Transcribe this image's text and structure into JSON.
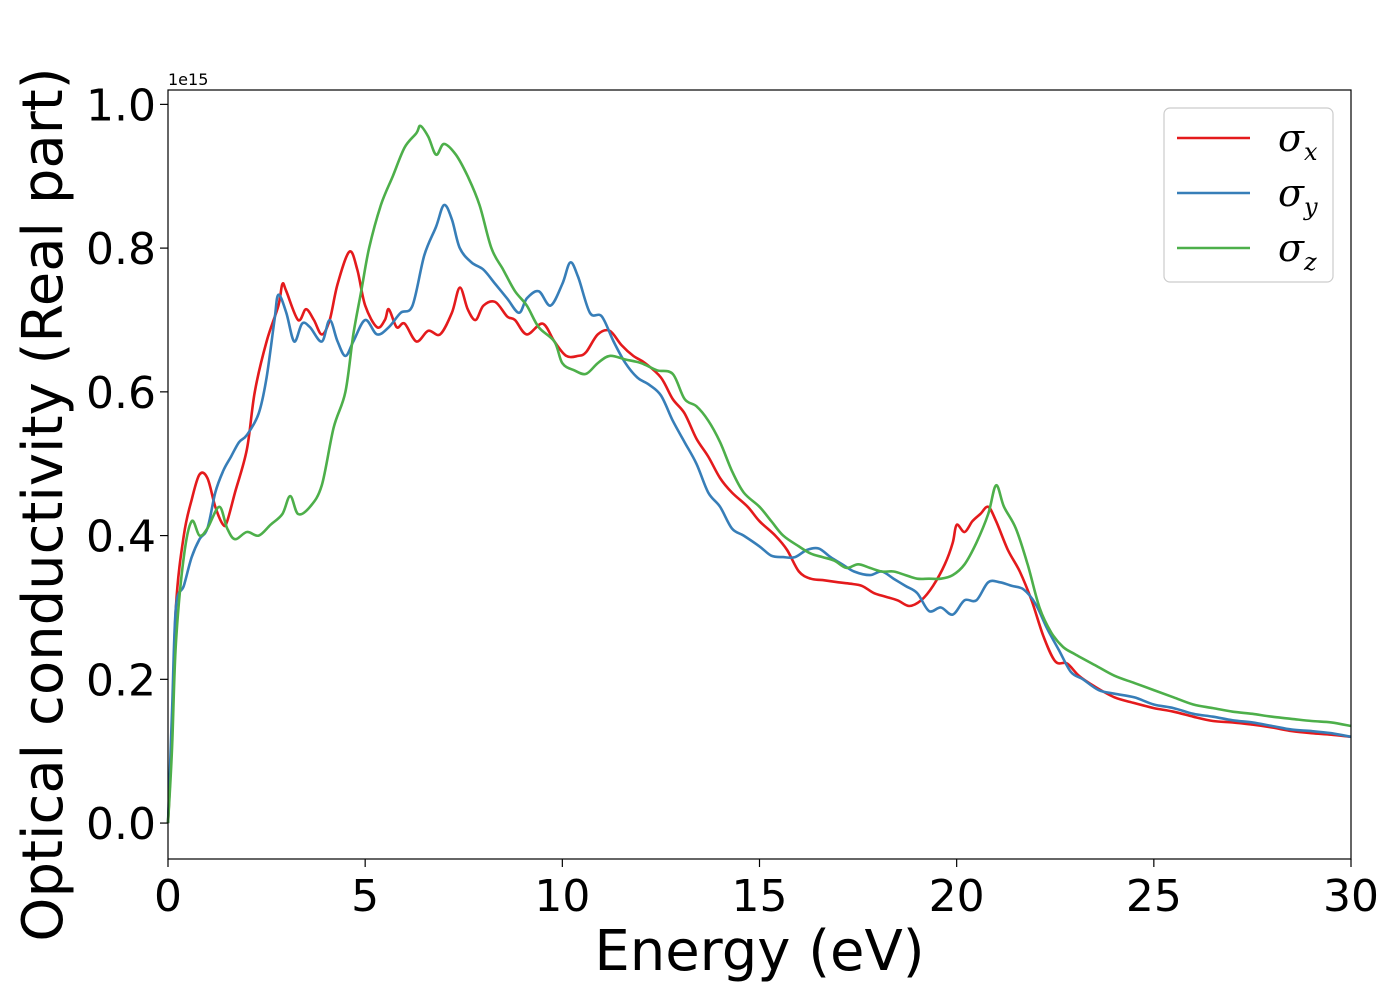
{
  "chart_data": {
    "type": "line",
    "xlabel": "Energy (eV)",
    "ylabel": "Optical conductivity (Real part)",
    "y_offset_label": "1e15",
    "xlim": [
      0,
      30
    ],
    "ylim": [
      -0.05,
      1.02
    ],
    "xticks": [
      0,
      5,
      10,
      15,
      20,
      25,
      30
    ],
    "yticks": [
      0.0,
      0.2,
      0.4,
      0.6,
      0.8,
      1.0
    ],
    "xtick_labels": [
      "0",
      "5",
      "10",
      "15",
      "20",
      "25",
      "30"
    ],
    "ytick_labels": [
      "0.0",
      "0.2",
      "0.4",
      "0.6",
      "0.8",
      "1.0"
    ],
    "legend_position": "top-right",
    "grid": false,
    "series": [
      {
        "name": "σx",
        "symbol": "σ",
        "subscript": "x",
        "color": "#e41a1c",
        "points": [
          [
            0,
            0.0
          ],
          [
            0.1,
            0.12
          ],
          [
            0.2,
            0.3
          ],
          [
            0.4,
            0.4
          ],
          [
            0.6,
            0.45
          ],
          [
            0.8,
            0.485
          ],
          [
            1.0,
            0.48
          ],
          [
            1.2,
            0.44
          ],
          [
            1.4,
            0.415
          ],
          [
            1.5,
            0.42
          ],
          [
            1.7,
            0.46
          ],
          [
            2.0,
            0.52
          ],
          [
            2.2,
            0.6
          ],
          [
            2.5,
            0.67
          ],
          [
            2.8,
            0.72
          ],
          [
            2.9,
            0.75
          ],
          [
            3.0,
            0.74
          ],
          [
            3.3,
            0.7
          ],
          [
            3.5,
            0.715
          ],
          [
            3.7,
            0.7
          ],
          [
            3.9,
            0.68
          ],
          [
            4.1,
            0.7
          ],
          [
            4.3,
            0.75
          ],
          [
            4.6,
            0.795
          ],
          [
            4.8,
            0.77
          ],
          [
            5.0,
            0.72
          ],
          [
            5.3,
            0.69
          ],
          [
            5.5,
            0.7
          ],
          [
            5.6,
            0.715
          ],
          [
            5.8,
            0.69
          ],
          [
            6.0,
            0.695
          ],
          [
            6.3,
            0.67
          ],
          [
            6.6,
            0.685
          ],
          [
            6.9,
            0.68
          ],
          [
            7.2,
            0.71
          ],
          [
            7.4,
            0.745
          ],
          [
            7.6,
            0.715
          ],
          [
            7.8,
            0.7
          ],
          [
            8.0,
            0.72
          ],
          [
            8.3,
            0.725
          ],
          [
            8.6,
            0.705
          ],
          [
            8.8,
            0.7
          ],
          [
            9.1,
            0.68
          ],
          [
            9.5,
            0.695
          ],
          [
            9.8,
            0.67
          ],
          [
            10.1,
            0.65
          ],
          [
            10.4,
            0.65
          ],
          [
            10.6,
            0.655
          ],
          [
            10.9,
            0.68
          ],
          [
            11.2,
            0.685
          ],
          [
            11.5,
            0.665
          ],
          [
            11.8,
            0.65
          ],
          [
            12.1,
            0.64
          ],
          [
            12.5,
            0.62
          ],
          [
            12.8,
            0.59
          ],
          [
            13.1,
            0.57
          ],
          [
            13.4,
            0.535
          ],
          [
            13.7,
            0.51
          ],
          [
            14.0,
            0.48
          ],
          [
            14.3,
            0.46
          ],
          [
            14.7,
            0.44
          ],
          [
            15.0,
            0.42
          ],
          [
            15.4,
            0.4
          ],
          [
            15.7,
            0.38
          ],
          [
            16.0,
            0.35
          ],
          [
            16.3,
            0.34
          ],
          [
            16.6,
            0.338
          ],
          [
            17.0,
            0.335
          ],
          [
            17.3,
            0.333
          ],
          [
            17.6,
            0.33
          ],
          [
            17.9,
            0.32
          ],
          [
            18.2,
            0.315
          ],
          [
            18.5,
            0.31
          ],
          [
            18.8,
            0.302
          ],
          [
            19.1,
            0.31
          ],
          [
            19.4,
            0.33
          ],
          [
            19.7,
            0.36
          ],
          [
            19.9,
            0.39
          ],
          [
            20.0,
            0.415
          ],
          [
            20.2,
            0.405
          ],
          [
            20.4,
            0.42
          ],
          [
            20.6,
            0.43
          ],
          [
            20.8,
            0.44
          ],
          [
            21.0,
            0.42
          ],
          [
            21.3,
            0.38
          ],
          [
            21.6,
            0.35
          ],
          [
            21.9,
            0.31
          ],
          [
            22.2,
            0.26
          ],
          [
            22.5,
            0.225
          ],
          [
            22.8,
            0.222
          ],
          [
            23.1,
            0.205
          ],
          [
            23.5,
            0.19
          ],
          [
            24.0,
            0.175
          ],
          [
            24.5,
            0.167
          ],
          [
            25.0,
            0.16
          ],
          [
            25.5,
            0.155
          ],
          [
            26.0,
            0.148
          ],
          [
            26.5,
            0.142
          ],
          [
            27.0,
            0.14
          ],
          [
            27.5,
            0.137
          ],
          [
            28.0,
            0.133
          ],
          [
            28.5,
            0.128
          ],
          [
            29.0,
            0.125
          ],
          [
            29.5,
            0.123
          ],
          [
            30.0,
            0.12
          ]
        ]
      },
      {
        "name": "σy",
        "symbol": "σ",
        "subscript": "y",
        "color": "#377eb8",
        "points": [
          [
            0,
            0.0
          ],
          [
            0.1,
            0.15
          ],
          [
            0.2,
            0.3
          ],
          [
            0.4,
            0.33
          ],
          [
            0.6,
            0.37
          ],
          [
            0.8,
            0.395
          ],
          [
            1.0,
            0.41
          ],
          [
            1.2,
            0.46
          ],
          [
            1.4,
            0.49
          ],
          [
            1.6,
            0.51
          ],
          [
            1.8,
            0.53
          ],
          [
            2.0,
            0.54
          ],
          [
            2.3,
            0.57
          ],
          [
            2.5,
            0.62
          ],
          [
            2.7,
            0.7
          ],
          [
            2.8,
            0.735
          ],
          [
            3.0,
            0.71
          ],
          [
            3.2,
            0.67
          ],
          [
            3.4,
            0.695
          ],
          [
            3.6,
            0.69
          ],
          [
            3.9,
            0.67
          ],
          [
            4.1,
            0.7
          ],
          [
            4.3,
            0.67
          ],
          [
            4.5,
            0.65
          ],
          [
            4.7,
            0.67
          ],
          [
            5.0,
            0.7
          ],
          [
            5.3,
            0.68
          ],
          [
            5.6,
            0.69
          ],
          [
            5.9,
            0.71
          ],
          [
            6.2,
            0.72
          ],
          [
            6.5,
            0.79
          ],
          [
            6.8,
            0.83
          ],
          [
            7.0,
            0.86
          ],
          [
            7.2,
            0.84
          ],
          [
            7.4,
            0.8
          ],
          [
            7.7,
            0.78
          ],
          [
            8.0,
            0.77
          ],
          [
            8.3,
            0.75
          ],
          [
            8.6,
            0.73
          ],
          [
            8.9,
            0.71
          ],
          [
            9.1,
            0.73
          ],
          [
            9.4,
            0.74
          ],
          [
            9.7,
            0.72
          ],
          [
            10.0,
            0.75
          ],
          [
            10.2,
            0.78
          ],
          [
            10.4,
            0.76
          ],
          [
            10.7,
            0.71
          ],
          [
            11.0,
            0.705
          ],
          [
            11.3,
            0.67
          ],
          [
            11.6,
            0.64
          ],
          [
            11.9,
            0.62
          ],
          [
            12.2,
            0.61
          ],
          [
            12.5,
            0.595
          ],
          [
            12.8,
            0.56
          ],
          [
            13.1,
            0.53
          ],
          [
            13.4,
            0.5
          ],
          [
            13.7,
            0.46
          ],
          [
            14.0,
            0.44
          ],
          [
            14.3,
            0.41
          ],
          [
            14.6,
            0.4
          ],
          [
            15.0,
            0.385
          ],
          [
            15.3,
            0.372
          ],
          [
            15.6,
            0.37
          ],
          [
            15.9,
            0.37
          ],
          [
            16.2,
            0.38
          ],
          [
            16.5,
            0.382
          ],
          [
            16.8,
            0.37
          ],
          [
            17.1,
            0.36
          ],
          [
            17.4,
            0.35
          ],
          [
            17.8,
            0.345
          ],
          [
            18.1,
            0.35
          ],
          [
            18.4,
            0.34
          ],
          [
            18.7,
            0.33
          ],
          [
            19.0,
            0.32
          ],
          [
            19.3,
            0.295
          ],
          [
            19.6,
            0.3
          ],
          [
            19.9,
            0.29
          ],
          [
            20.2,
            0.31
          ],
          [
            20.5,
            0.31
          ],
          [
            20.8,
            0.335
          ],
          [
            21.1,
            0.335
          ],
          [
            21.4,
            0.33
          ],
          [
            21.7,
            0.325
          ],
          [
            22.0,
            0.305
          ],
          [
            22.3,
            0.27
          ],
          [
            22.6,
            0.24
          ],
          [
            22.9,
            0.21
          ],
          [
            23.2,
            0.2
          ],
          [
            23.6,
            0.185
          ],
          [
            24.0,
            0.18
          ],
          [
            24.5,
            0.175
          ],
          [
            25.0,
            0.165
          ],
          [
            25.5,
            0.16
          ],
          [
            26.0,
            0.152
          ],
          [
            26.5,
            0.148
          ],
          [
            27.0,
            0.143
          ],
          [
            27.5,
            0.14
          ],
          [
            28.0,
            0.135
          ],
          [
            28.5,
            0.13
          ],
          [
            29.0,
            0.128
          ],
          [
            29.5,
            0.125
          ],
          [
            30.0,
            0.12
          ]
        ]
      },
      {
        "name": "σz",
        "symbol": "σ",
        "subscript": "z",
        "color": "#4daf4a",
        "points": [
          [
            0,
            0.0
          ],
          [
            0.1,
            0.1
          ],
          [
            0.2,
            0.25
          ],
          [
            0.4,
            0.37
          ],
          [
            0.6,
            0.42
          ],
          [
            0.8,
            0.4
          ],
          [
            1.0,
            0.41
          ],
          [
            1.3,
            0.44
          ],
          [
            1.5,
            0.41
          ],
          [
            1.7,
            0.395
          ],
          [
            2.0,
            0.405
          ],
          [
            2.3,
            0.4
          ],
          [
            2.6,
            0.415
          ],
          [
            2.9,
            0.43
          ],
          [
            3.1,
            0.455
          ],
          [
            3.3,
            0.43
          ],
          [
            3.6,
            0.44
          ],
          [
            3.9,
            0.47
          ],
          [
            4.2,
            0.55
          ],
          [
            4.5,
            0.6
          ],
          [
            4.7,
            0.68
          ],
          [
            4.9,
            0.74
          ],
          [
            5.1,
            0.8
          ],
          [
            5.4,
            0.86
          ],
          [
            5.7,
            0.9
          ],
          [
            6.0,
            0.94
          ],
          [
            6.3,
            0.96
          ],
          [
            6.4,
            0.97
          ],
          [
            6.6,
            0.955
          ],
          [
            6.8,
            0.93
          ],
          [
            7.0,
            0.945
          ],
          [
            7.3,
            0.93
          ],
          [
            7.6,
            0.9
          ],
          [
            7.9,
            0.86
          ],
          [
            8.2,
            0.8
          ],
          [
            8.5,
            0.77
          ],
          [
            8.8,
            0.74
          ],
          [
            9.1,
            0.72
          ],
          [
            9.4,
            0.69
          ],
          [
            9.8,
            0.67
          ],
          [
            10.0,
            0.64
          ],
          [
            10.3,
            0.63
          ],
          [
            10.6,
            0.625
          ],
          [
            10.9,
            0.64
          ],
          [
            11.2,
            0.65
          ],
          [
            11.6,
            0.645
          ],
          [
            12.0,
            0.64
          ],
          [
            12.4,
            0.63
          ],
          [
            12.8,
            0.625
          ],
          [
            13.1,
            0.59
          ],
          [
            13.4,
            0.58
          ],
          [
            13.7,
            0.56
          ],
          [
            14.0,
            0.53
          ],
          [
            14.3,
            0.49
          ],
          [
            14.6,
            0.46
          ],
          [
            15.0,
            0.44
          ],
          [
            15.3,
            0.42
          ],
          [
            15.6,
            0.4
          ],
          [
            16.0,
            0.385
          ],
          [
            16.3,
            0.375
          ],
          [
            16.6,
            0.37
          ],
          [
            16.9,
            0.365
          ],
          [
            17.2,
            0.355
          ],
          [
            17.5,
            0.36
          ],
          [
            17.8,
            0.355
          ],
          [
            18.1,
            0.35
          ],
          [
            18.4,
            0.35
          ],
          [
            18.7,
            0.345
          ],
          [
            19.0,
            0.34
          ],
          [
            19.3,
            0.34
          ],
          [
            19.6,
            0.34
          ],
          [
            19.9,
            0.345
          ],
          [
            20.2,
            0.36
          ],
          [
            20.5,
            0.39
          ],
          [
            20.8,
            0.43
          ],
          [
            21.0,
            0.47
          ],
          [
            21.2,
            0.44
          ],
          [
            21.5,
            0.41
          ],
          [
            21.8,
            0.36
          ],
          [
            22.1,
            0.3
          ],
          [
            22.4,
            0.265
          ],
          [
            22.7,
            0.245
          ],
          [
            23.0,
            0.235
          ],
          [
            23.5,
            0.22
          ],
          [
            24.0,
            0.205
          ],
          [
            24.5,
            0.195
          ],
          [
            25.0,
            0.185
          ],
          [
            25.5,
            0.175
          ],
          [
            26.0,
            0.165
          ],
          [
            26.5,
            0.16
          ],
          [
            27.0,
            0.155
          ],
          [
            27.5,
            0.152
          ],
          [
            28.0,
            0.148
          ],
          [
            28.5,
            0.145
          ],
          [
            29.0,
            0.142
          ],
          [
            29.5,
            0.14
          ],
          [
            30.0,
            0.135
          ]
        ]
      }
    ]
  }
}
